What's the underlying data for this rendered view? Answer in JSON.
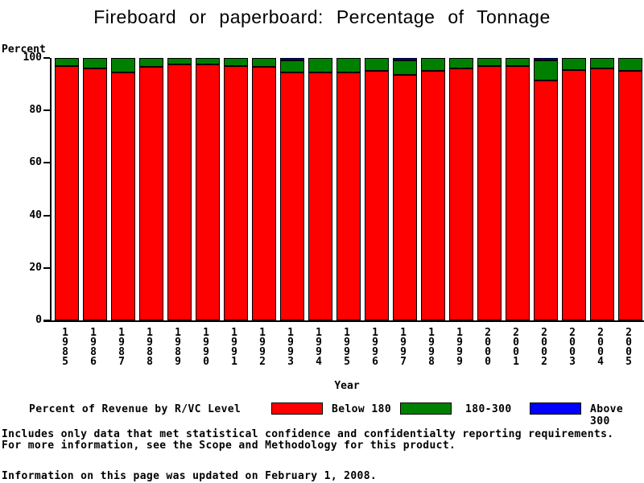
{
  "page": {
    "footnotes": [
      "Includes only data that met statistical confidence and confidentialty reporting requirements.",
      "For more information, see the Scope and Methodology for this product."
    ],
    "updated": "Information on this page was updated on February 1, 2008."
  },
  "chart_data": {
    "type": "bar",
    "stacked": true,
    "title": "Fireboard or paperboard: Percentage of Tonnage",
    "xlabel": "Year",
    "ylabel": "Percent",
    "ylim": [
      0,
      100
    ],
    "yticks": [
      0,
      20,
      40,
      60,
      80,
      100
    ],
    "grid": false,
    "legend_position": "bottom",
    "legend_title": "Percent of Revenue by R/VC Level",
    "categories": [
      "1985",
      "1986",
      "1987",
      "1988",
      "1989",
      "1990",
      "1991",
      "1992",
      "1993",
      "1994",
      "1995",
      "1996",
      "1997",
      "1998",
      "1999",
      "2000",
      "2001",
      "2002",
      "2003",
      "2004",
      "2005"
    ],
    "series": [
      {
        "name": "Below 180",
        "color": "#ff0000",
        "values": [
          97,
          96,
          94.5,
          96.5,
          97.5,
          97.5,
          97,
          96.5,
          94.5,
          94.5,
          94.5,
          95,
          93.5,
          95,
          96,
          97,
          97,
          91.5,
          95.5,
          96,
          95
        ]
      },
      {
        "name": "180-300",
        "color": "#008000",
        "values": [
          3,
          4,
          5.5,
          3.5,
          2.5,
          2.5,
          3,
          3.5,
          4.7,
          5.5,
          5.5,
          5,
          5.7,
          5,
          4,
          3,
          3,
          7.7,
          4.5,
          4,
          5
        ]
      },
      {
        "name": "Above 300",
        "color": "#0000ff",
        "values": [
          0,
          0,
          0,
          0,
          0,
          0,
          0,
          0,
          0.8,
          0,
          0,
          0,
          0.8,
          0,
          0,
          0,
          0,
          0.8,
          0,
          0,
          0
        ]
      }
    ]
  }
}
